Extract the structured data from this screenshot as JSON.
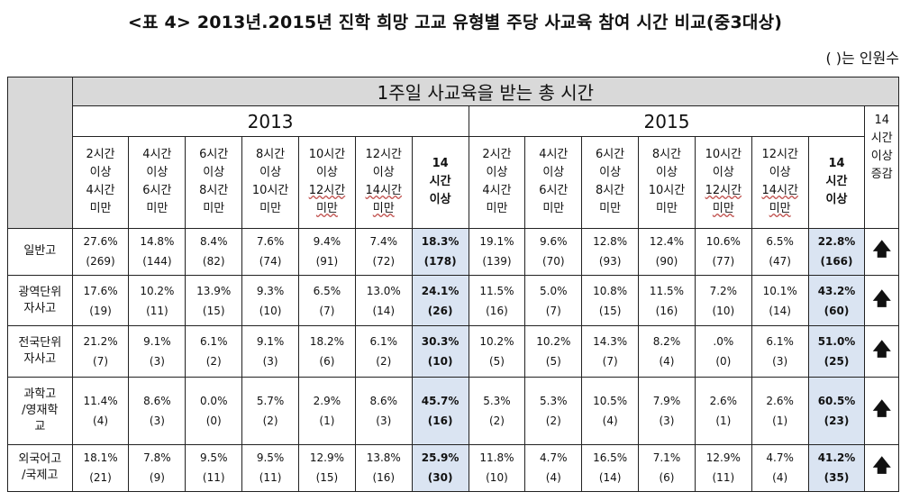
{
  "title": "<표 4> 2013년.2015년 진학 희망 고교 유형별 주당 사교육 참여 시간 비교(중3대상)",
  "note": "( )는 인원수",
  "table": {
    "main_header": "1주일 사교육을 받는 총 시간",
    "years": [
      "2013",
      "2015"
    ],
    "change_header": [
      "14",
      "시간",
      "이상",
      "증감"
    ],
    "categories": [
      [
        "2시간",
        "이상",
        "4시간",
        "미만"
      ],
      [
        "4시간",
        "이상",
        "6시간",
        "미만"
      ],
      [
        "6시간",
        "이상",
        "8시간",
        "미만"
      ],
      [
        "8시간",
        "이상",
        "10시간",
        "미만"
      ],
      [
        "10시간",
        "이상",
        "12시간",
        "미만"
      ],
      [
        "12시간",
        "이상",
        "14시간",
        "미만"
      ],
      [
        "14",
        "시간",
        "이상"
      ]
    ],
    "rows": [
      {
        "label": [
          "일반고"
        ],
        "y2013": [
          [
            "27.6%",
            "(269)"
          ],
          [
            "14.8%",
            "(144)"
          ],
          [
            "8.4%",
            "(82)"
          ],
          [
            "7.6%",
            "(74)"
          ],
          [
            "9.4%",
            "(91)"
          ],
          [
            "7.4%",
            "(72)"
          ],
          [
            "18.3%",
            "(178)"
          ]
        ],
        "y2015": [
          [
            "19.1%",
            "(139)"
          ],
          [
            "9.6%",
            "(70)"
          ],
          [
            "12.8%",
            "(93)"
          ],
          [
            "12.4%",
            "(90)"
          ],
          [
            "10.6%",
            "(77)"
          ],
          [
            "6.5%",
            "(47)"
          ],
          [
            "22.8%",
            "(166)"
          ]
        ],
        "change": "🡅"
      },
      {
        "label": [
          "광역단위",
          "자사고"
        ],
        "y2013": [
          [
            "17.6%",
            "(19)"
          ],
          [
            "10.2%",
            "(11)"
          ],
          [
            "13.9%",
            "(15)"
          ],
          [
            "9.3%",
            "(10)"
          ],
          [
            "6.5%",
            "(7)"
          ],
          [
            "13.0%",
            "(14)"
          ],
          [
            "24.1%",
            "(26)"
          ]
        ],
        "y2015": [
          [
            "11.5%",
            "(16)"
          ],
          [
            "5.0%",
            "(7)"
          ],
          [
            "10.8%",
            "(15)"
          ],
          [
            "11.5%",
            "(16)"
          ],
          [
            "7.2%",
            "(10)"
          ],
          [
            "10.1%",
            "(14)"
          ],
          [
            "43.2%",
            "(60)"
          ]
        ],
        "change": "🡅"
      },
      {
        "label": [
          "전국단위",
          "자사고"
        ],
        "y2013": [
          [
            "21.2%",
            "(7)"
          ],
          [
            "9.1%",
            "(3)"
          ],
          [
            "6.1%",
            "(2)"
          ],
          [
            "9.1%",
            "(3)"
          ],
          [
            "18.2%",
            "(6)"
          ],
          [
            "6.1%",
            "(2)"
          ],
          [
            "30.3%",
            "(10)"
          ]
        ],
        "y2015": [
          [
            "10.2%",
            "(5)"
          ],
          [
            "10.2%",
            "(5)"
          ],
          [
            "14.3%",
            "(7)"
          ],
          [
            "8.2%",
            "(4)"
          ],
          [
            ".0%",
            "(0)"
          ],
          [
            "6.1%",
            "(3)"
          ],
          [
            "51.0%",
            "(25)"
          ]
        ],
        "change": "🡅"
      },
      {
        "label": [
          "과학고",
          "/영재학",
          "교"
        ],
        "y2013": [
          [
            "11.4%",
            "(4)"
          ],
          [
            "8.6%",
            "(3)"
          ],
          [
            "0.0%",
            "(0)"
          ],
          [
            "5.7%",
            "(2)"
          ],
          [
            "2.9%",
            "(1)"
          ],
          [
            "8.6%",
            "(3)"
          ],
          [
            "45.7%",
            "(16)"
          ]
        ],
        "y2015": [
          [
            "5.3%",
            "(2)"
          ],
          [
            "5.3%",
            "(2)"
          ],
          [
            "10.5%",
            "(4)"
          ],
          [
            "7.9%",
            "(3)"
          ],
          [
            "2.6%",
            "(1)"
          ],
          [
            "2.6%",
            "(1)"
          ],
          [
            "60.5%",
            "(23)"
          ]
        ],
        "change": "🡅"
      },
      {
        "label": [
          "외국어고",
          "/국제고"
        ],
        "y2013": [
          [
            "18.1%",
            "(21)"
          ],
          [
            "7.8%",
            "(9)"
          ],
          [
            "9.5%",
            "(11)"
          ],
          [
            "9.5%",
            "(11)"
          ],
          [
            "12.9%",
            "(15)"
          ],
          [
            "13.8%",
            "(16)"
          ],
          [
            "25.9%",
            "(30)"
          ]
        ],
        "y2015": [
          [
            "11.8%",
            "(10)"
          ],
          [
            "4.7%",
            "(4)"
          ],
          [
            "16.5%",
            "(14)"
          ],
          [
            "7.1%",
            "(6)"
          ],
          [
            "12.9%",
            "(11)"
          ],
          [
            "4.7%",
            "(4)"
          ],
          [
            "41.2%",
            "(35)"
          ]
        ],
        "change": "🡅"
      }
    ]
  }
}
